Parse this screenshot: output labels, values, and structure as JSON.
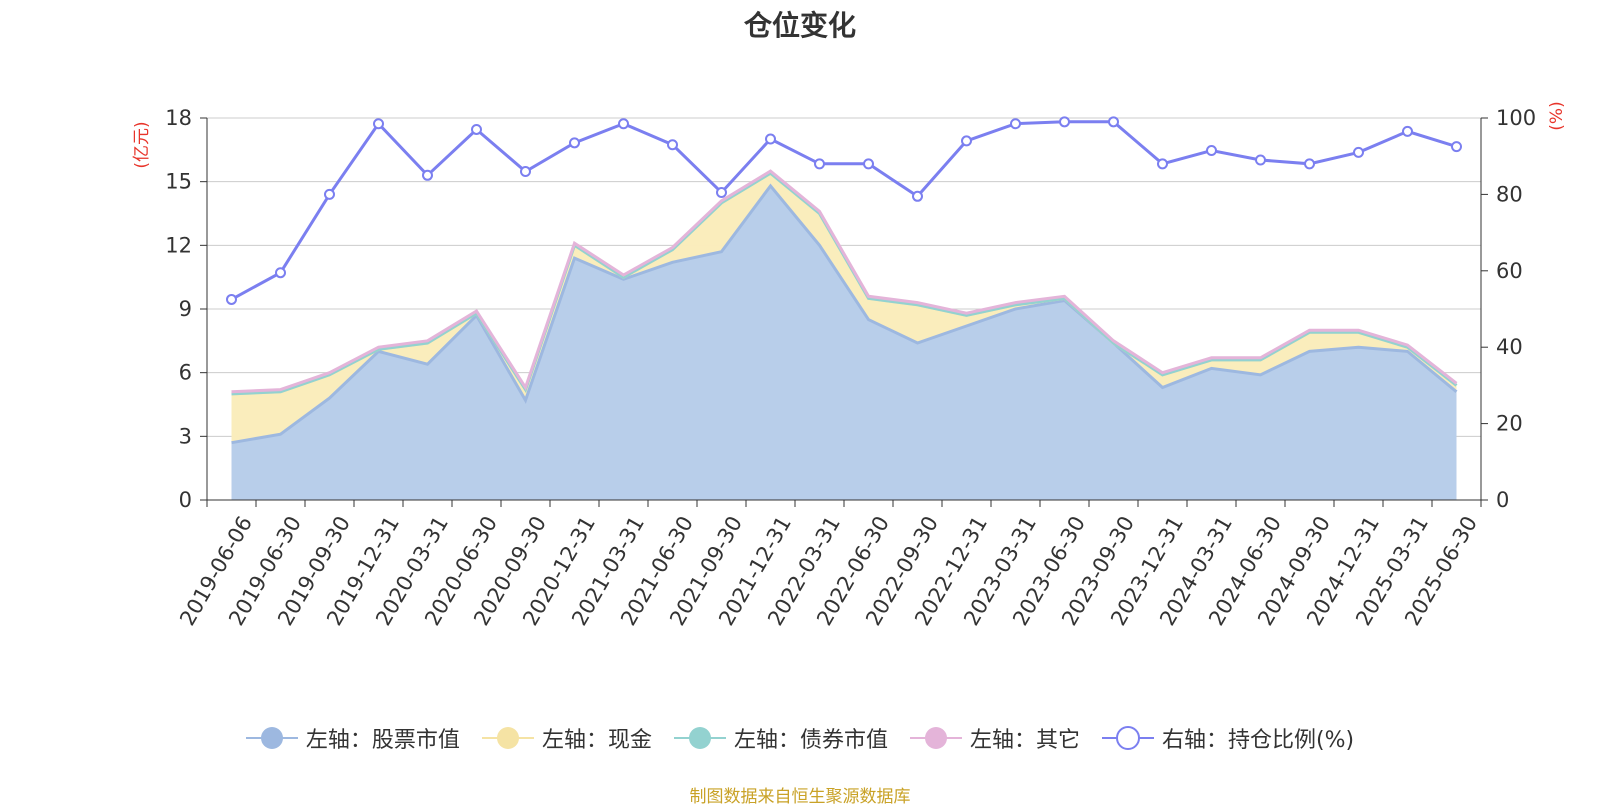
{
  "chart_data": {
    "type": "area",
    "title": "仓位变化",
    "y_left_label": "(亿元)",
    "y_right_label": "(%)",
    "y_left_range": [
      0,
      18
    ],
    "y_left_ticks": [
      "0",
      "3",
      "6",
      "9",
      "12",
      "15",
      "18"
    ],
    "y_right_range": [
      0,
      100
    ],
    "y_right_ticks": [
      "0",
      "20",
      "40",
      "60",
      "80",
      "100"
    ],
    "grid": true,
    "legend_position": "bottom",
    "categories": [
      "2019-06-06",
      "2019-06-30",
      "2019-09-30",
      "2019-12-31",
      "2020-03-31",
      "2020-06-30",
      "2020-09-30",
      "2020-12-31",
      "2021-03-31",
      "2021-06-30",
      "2021-09-30",
      "2021-12-31",
      "2022-03-31",
      "2022-06-30",
      "2022-09-30",
      "2022-12-31",
      "2023-03-31",
      "2023-06-30",
      "2023-09-30",
      "2023-12-31",
      "2024-03-31",
      "2024-06-30",
      "2024-09-30",
      "2024-12-31",
      "2025-03-31",
      "2025-06-30"
    ],
    "series": [
      {
        "name": "左轴：股票市值",
        "axis": "left",
        "color": "#9db8e0",
        "fill": "#b7cdea",
        "values": [
          2.7,
          3.1,
          4.8,
          7.0,
          6.4,
          8.7,
          4.7,
          11.4,
          10.4,
          11.2,
          11.7,
          14.8,
          12.0,
          8.5,
          7.4,
          8.2,
          9.0,
          9.4,
          7.4,
          5.3,
          6.2,
          5.9,
          7.0,
          7.2,
          7.0,
          5.1
        ]
      },
      {
        "name": "左轴：现金",
        "axis": "left",
        "color": "#f5e3a4",
        "fill": "#faedbb",
        "values": [
          2.3,
          2.0,
          1.1,
          0.1,
          1.0,
          0.1,
          0.5,
          0.6,
          0.1,
          0.6,
          2.3,
          0.6,
          1.5,
          1.0,
          1.8,
          0.5,
          0.2,
          0.1,
          0.0,
          0.6,
          0.4,
          0.7,
          0.9,
          0.7,
          0.2,
          0.3
        ]
      },
      {
        "name": "左轴：债券市值",
        "axis": "left",
        "color": "#93d2d0",
        "fill": "#b7e3e1",
        "values": [
          0,
          0,
          0,
          0,
          0,
          0,
          0,
          0,
          0,
          0,
          0,
          0,
          0,
          0,
          0,
          0,
          0,
          0,
          0,
          0,
          0,
          0,
          0,
          0,
          0,
          0
        ]
      },
      {
        "name": "左轴：其它",
        "axis": "left",
        "color": "#e4b4d9",
        "fill": "#f0d2ea",
        "values": [
          0.1,
          0.1,
          0.1,
          0.1,
          0.1,
          0.1,
          0.1,
          0.1,
          0.1,
          0.1,
          0.1,
          0.1,
          0.1,
          0.1,
          0.1,
          0.1,
          0.1,
          0.1,
          0.1,
          0.1,
          0.1,
          0.1,
          0.1,
          0.1,
          0.1,
          0.1
        ]
      },
      {
        "name": "右轴：持仓比例(%)",
        "axis": "right",
        "color": "#7b7ff0",
        "values": [
          52.5,
          59.5,
          80.0,
          98.5,
          85.0,
          97.0,
          86.0,
          93.5,
          98.5,
          93.0,
          80.5,
          94.5,
          88.0,
          88.0,
          79.5,
          94.0,
          98.5,
          99.0,
          99.0,
          88.0,
          91.5,
          89.0,
          88.0,
          91.0,
          96.5,
          92.5
        ]
      }
    ]
  },
  "footer": {
    "source": "制图数据来自恒生聚源数据库"
  }
}
